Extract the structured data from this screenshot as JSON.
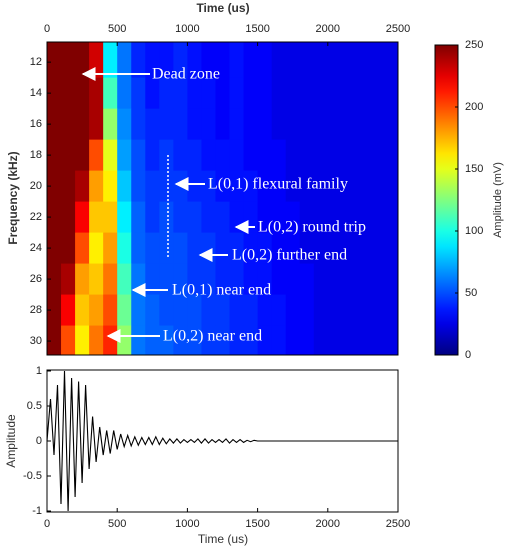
{
  "chart_data": [
    {
      "type": "heatmap",
      "x_label": "Time (us)",
      "y_label": "Frequency (kHz)",
      "xlim": [
        0,
        2500
      ],
      "xticks": [
        0,
        500,
        1000,
        1500,
        2000,
        2500
      ],
      "ylim": [
        10.7,
        30.9
      ],
      "y_inverted": true,
      "yticks": [
        12,
        14,
        16,
        18,
        20,
        22,
        24,
        26,
        28,
        30
      ],
      "x_bins": [
        0,
        100,
        200,
        300,
        400,
        500,
        600,
        700,
        800,
        900,
        1000,
        1100,
        1200,
        1300,
        1400,
        1500,
        1600,
        1700,
        1800,
        1900,
        2000,
        2100,
        2200,
        2300,
        2400,
        2500
      ],
      "y_bins": [
        10.7,
        13,
        15,
        17,
        19,
        21,
        23,
        25,
        27,
        29,
        30.9
      ],
      "z": [
        [
          250,
          250,
          250,
          230,
          90,
          60,
          40,
          35,
          35,
          40,
          35,
          30,
          30,
          35,
          30,
          30,
          25,
          25,
          25,
          25,
          25,
          25,
          25,
          25,
          25
        ],
        [
          250,
          250,
          250,
          240,
          110,
          60,
          45,
          35,
          40,
          40,
          35,
          35,
          30,
          35,
          30,
          30,
          25,
          25,
          25,
          25,
          25,
          25,
          25,
          25,
          25
        ],
        [
          250,
          250,
          250,
          240,
          130,
          65,
          45,
          40,
          40,
          40,
          35,
          35,
          30,
          35,
          30,
          30,
          25,
          25,
          25,
          25,
          25,
          25,
          25,
          25,
          25
        ],
        [
          250,
          250,
          250,
          200,
          150,
          70,
          50,
          40,
          45,
          40,
          40,
          35,
          35,
          35,
          30,
          30,
          30,
          25,
          25,
          25,
          25,
          25,
          25,
          25,
          25
        ],
        [
          250,
          250,
          240,
          180,
          160,
          80,
          50,
          45,
          45,
          45,
          40,
          40,
          35,
          35,
          35,
          30,
          30,
          25,
          25,
          25,
          25,
          25,
          25,
          25,
          25
        ],
        [
          250,
          250,
          220,
          170,
          170,
          90,
          55,
          45,
          50,
          45,
          45,
          40,
          40,
          35,
          35,
          30,
          30,
          30,
          25,
          25,
          25,
          25,
          25,
          25,
          25
        ],
        [
          250,
          250,
          200,
          160,
          180,
          100,
          55,
          50,
          50,
          50,
          45,
          45,
          40,
          40,
          35,
          35,
          30,
          30,
          25,
          25,
          25,
          25,
          25,
          25,
          25
        ],
        [
          250,
          240,
          180,
          170,
          190,
          110,
          60,
          50,
          50,
          50,
          45,
          45,
          40,
          40,
          35,
          35,
          30,
          30,
          30,
          25,
          25,
          25,
          25,
          25,
          25
        ],
        [
          250,
          220,
          170,
          180,
          200,
          120,
          60,
          55,
          50,
          50,
          50,
          45,
          45,
          40,
          40,
          35,
          35,
          30,
          30,
          25,
          25,
          25,
          25,
          25,
          25
        ],
        [
          250,
          200,
          160,
          190,
          210,
          130,
          60,
          55,
          55,
          50,
          50,
          45,
          45,
          40,
          40,
          35,
          35,
          30,
          30,
          25,
          25,
          25,
          25,
          25,
          25
        ]
      ],
      "colormap": "jet",
      "clim": [
        0,
        250
      ],
      "cticks": [
        0,
        50,
        100,
        150,
        200,
        250
      ],
      "colorbar_label": "Amplitude (mV)",
      "annotations": [
        "Dead zone",
        "L(0,1) flexural family",
        "L(0,2) round trip",
        "L(0,2) further end",
        "L(0,1) near end",
        "L(0,2) near end"
      ]
    },
    {
      "type": "line",
      "x_label": "Time (us)",
      "y_label": "Amplitude",
      "xlim": [
        0,
        2500
      ],
      "xticks": [
        0,
        500,
        1000,
        1500,
        2000,
        2500
      ],
      "ylim": [
        -1,
        1
      ],
      "yticks": [
        -1,
        -0.5,
        0,
        0.5,
        1
      ],
      "x": [
        0,
        25,
        50,
        75,
        100,
        125,
        150,
        175,
        200,
        225,
        250,
        275,
        300,
        325,
        350,
        375,
        400,
        425,
        450,
        475,
        500,
        525,
        550,
        575,
        600,
        625,
        650,
        675,
        700,
        725,
        750,
        775,
        800,
        825,
        850,
        875,
        900,
        925,
        950,
        975,
        1000,
        1025,
        1050,
        1075,
        1100,
        1125,
        1150,
        1175,
        1200,
        1225,
        1250,
        1275,
        1300,
        1325,
        1350,
        1375,
        1400,
        1425,
        1450,
        1475,
        1500,
        1600,
        1700,
        1800,
        1900,
        2000,
        2100,
        2200,
        2300,
        2400,
        2500
      ],
      "series": [
        {
          "color": "#000000",
          "values": [
            0,
            0.6,
            -0.2,
            0.8,
            -0.9,
            1.0,
            -1.0,
            0.9,
            -0.8,
            0.85,
            -0.6,
            0.8,
            -0.4,
            0.35,
            -0.3,
            0.2,
            -0.2,
            0.15,
            -0.18,
            0.15,
            -0.12,
            0.1,
            -0.08,
            0.08,
            -0.07,
            0.06,
            -0.06,
            0.05,
            -0.05,
            0.05,
            -0.05,
            0.06,
            -0.05,
            0.04,
            -0.04,
            0.03,
            -0.03,
            0.03,
            -0.03,
            0.02,
            -0.02,
            0.02,
            -0.02,
            0.03,
            -0.03,
            0.03,
            -0.03,
            0.02,
            -0.02,
            0.02,
            -0.02,
            0.03,
            -0.03,
            0.02,
            -0.02,
            0.02,
            -0.02,
            0.01,
            -0.01,
            0.01,
            0,
            0,
            0,
            0,
            0,
            0,
            0,
            0,
            0,
            0,
            0
          ]
        }
      ]
    }
  ]
}
